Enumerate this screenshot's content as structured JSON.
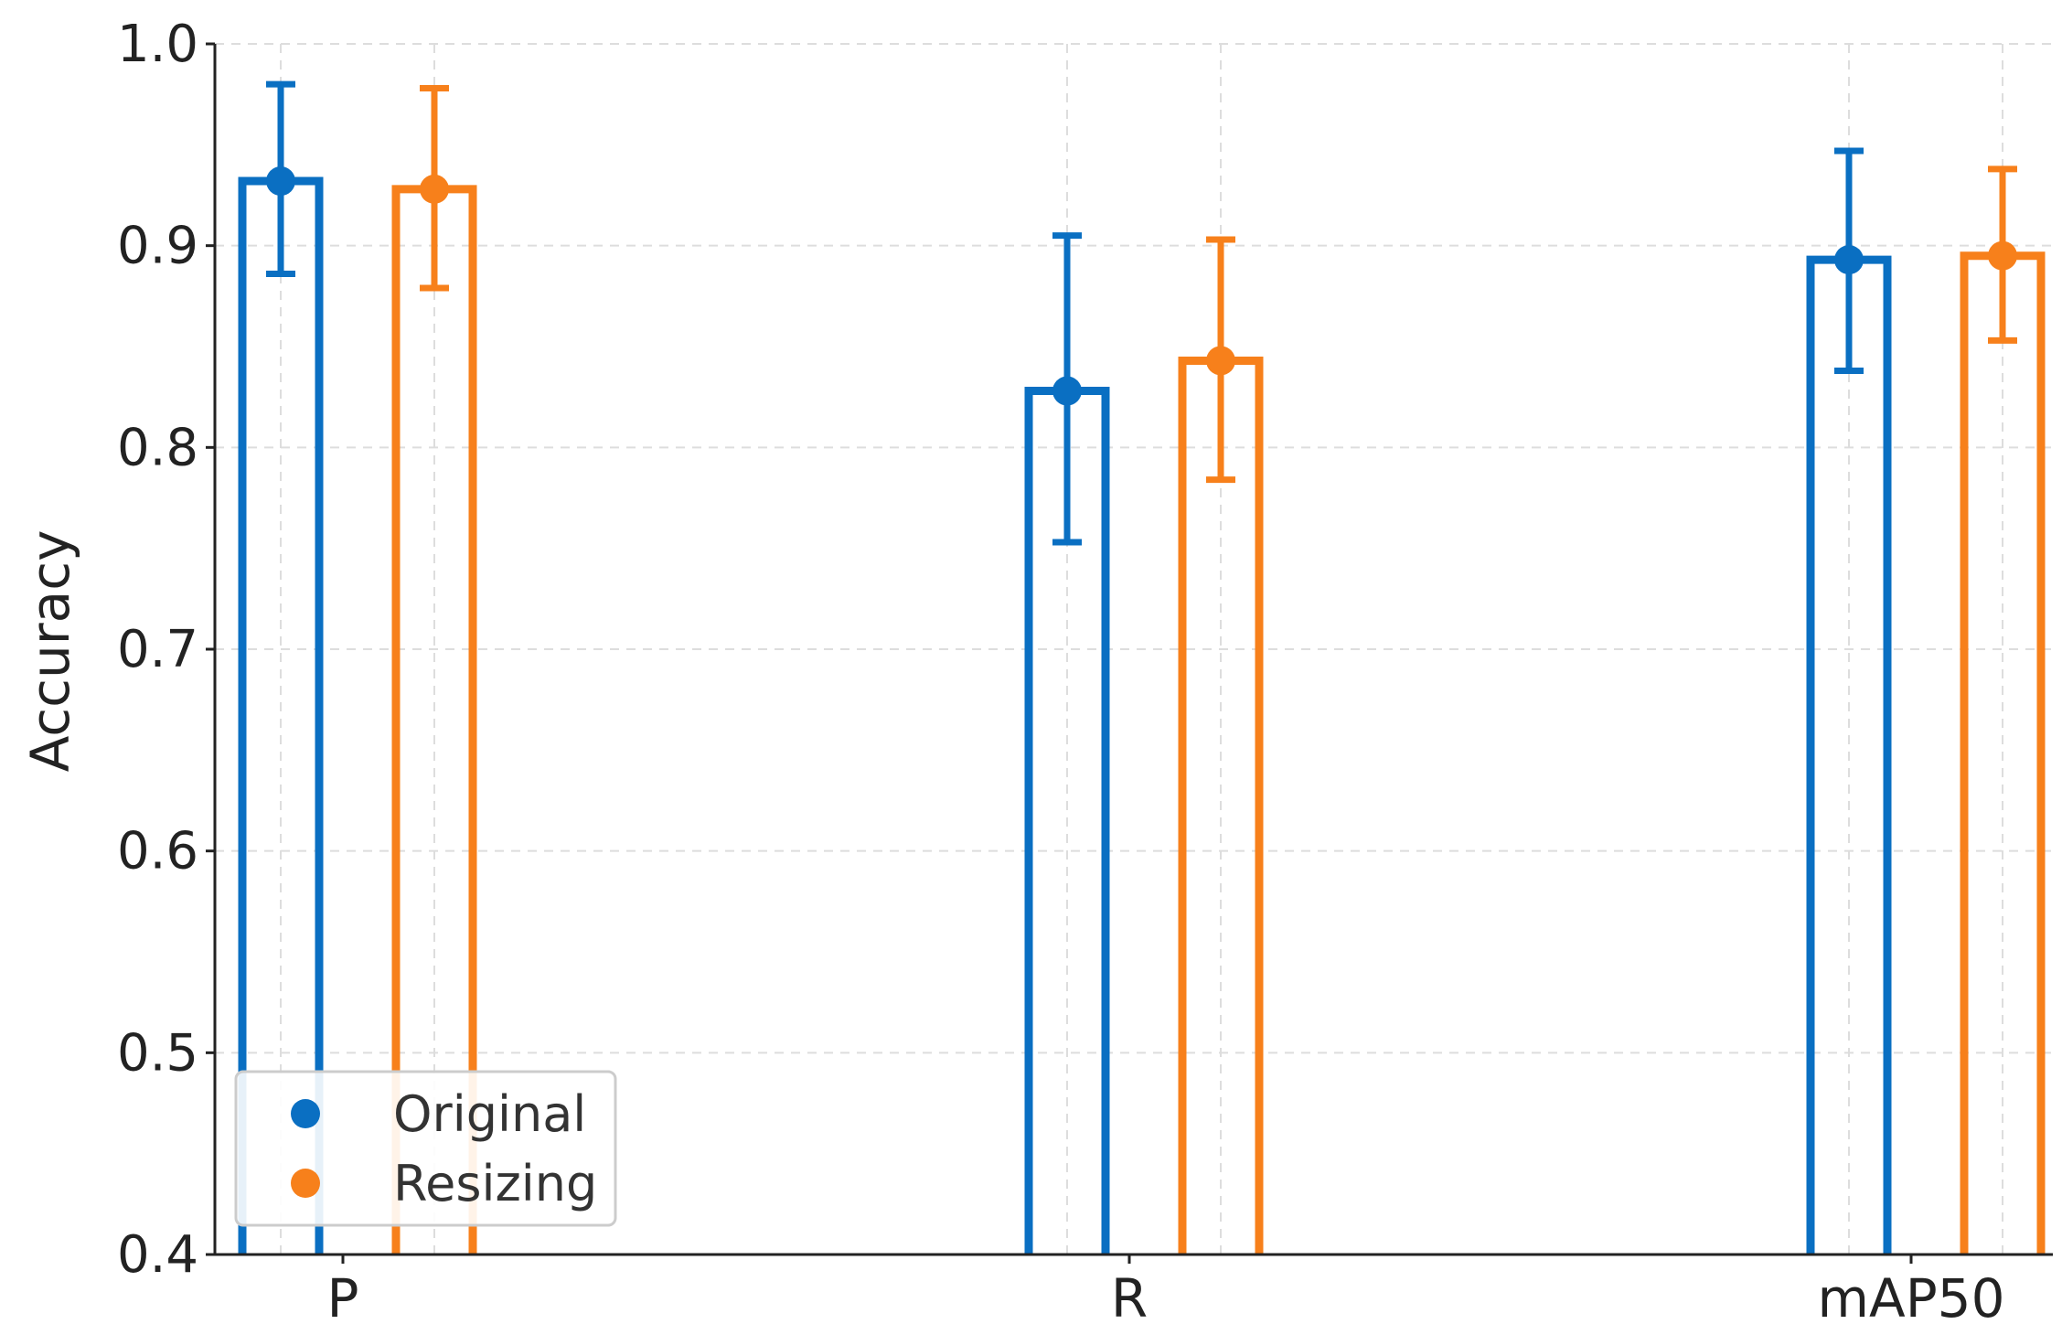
{
  "chart_data": {
    "type": "bar",
    "title": "",
    "xlabel": "",
    "ylabel": "Accuracy",
    "ylim": [
      0.4,
      1.0
    ],
    "yticks": [
      "0.4",
      "0.5",
      "0.6",
      "0.7",
      "0.8",
      "0.9",
      "1.0"
    ],
    "categories": [
      "P",
      "R",
      "mAP50"
    ],
    "grid": true,
    "legend_position": "lower-left",
    "bar_style": "unfilled bars with edge outline and error bars, marker at mean",
    "series": [
      {
        "name": "Original",
        "color": "#0a6fc2",
        "values": [
          0.932,
          0.828,
          0.893
        ],
        "err_low": [
          0.886,
          0.753,
          0.838
        ],
        "err_high": [
          0.98,
          0.905,
          0.947
        ]
      },
      {
        "name": "Resizing",
        "color": "#f7801b",
        "values": [
          0.928,
          0.843,
          0.895
        ],
        "err_low": [
          0.879,
          0.784,
          0.853
        ],
        "err_high": [
          0.978,
          0.903,
          0.938
        ]
      }
    ]
  }
}
